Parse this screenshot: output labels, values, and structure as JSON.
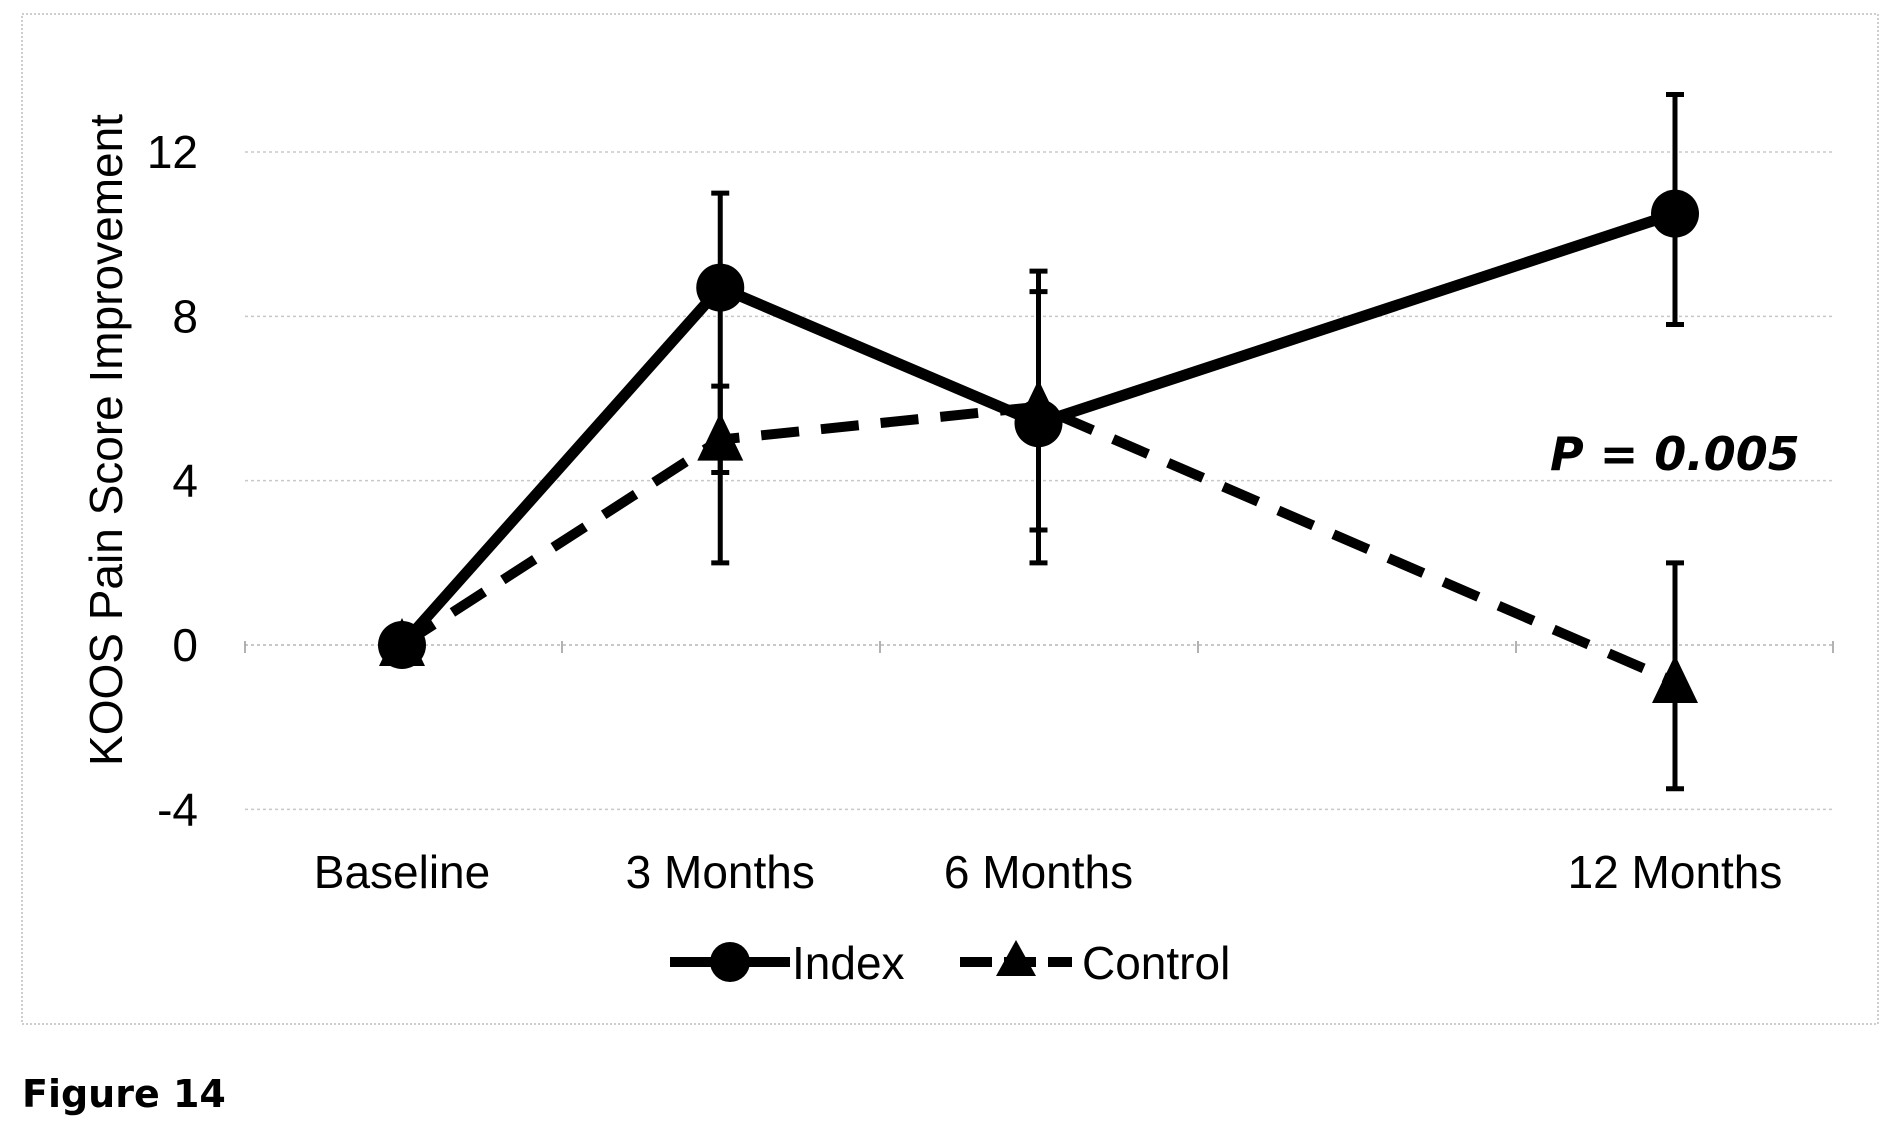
{
  "figure_label": "Figure 14",
  "chart_data": {
    "type": "line",
    "ylabel": "KOOS Pain Score Improvement",
    "xlabel": "",
    "title": "",
    "ylim": [
      -4,
      12
    ],
    "yticks": [
      -4,
      0,
      4,
      8,
      12
    ],
    "categories": [
      "Baseline",
      "3 Months",
      "6 Months",
      "12 Months"
    ],
    "x": [
      0,
      3,
      6,
      12
    ],
    "grid": true,
    "legend_placement": "bottom",
    "annotation": "P = 0.005",
    "series": [
      {
        "name": "Index",
        "marker": "circle",
        "line_style": "solid",
        "values": [
          0,
          8.7,
          5.4,
          10.5
        ],
        "error_low": [
          0,
          4.2,
          2.8,
          7.8
        ],
        "error_high": [
          0,
          11.0,
          8.6,
          13.4
        ]
      },
      {
        "name": "Control",
        "marker": "triangle",
        "line_style": "dashed",
        "values": [
          0,
          5.0,
          5.8,
          -0.9
        ],
        "error_low": [
          0,
          2.0,
          2.0,
          -3.5
        ],
        "error_high": [
          0,
          6.3,
          9.1,
          2.0
        ]
      }
    ],
    "colors": {
      "line": "#000000",
      "grid": "#c8c8c8"
    }
  }
}
